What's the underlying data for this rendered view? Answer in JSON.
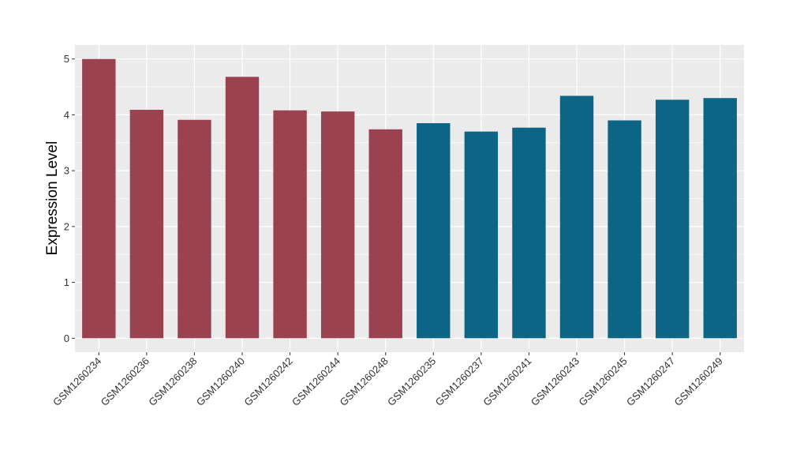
{
  "chart_data": {
    "type": "bar",
    "ylabel": "Expression Level",
    "xlabel": "",
    "title": "",
    "ylim": [
      -0.25,
      5.25
    ],
    "yticks": [
      0,
      1,
      2,
      3,
      4,
      5
    ],
    "grid": true,
    "legend": "none",
    "categories": [
      "GSM1260234",
      "GSM1260236",
      "GSM1260238",
      "GSM1260240",
      "GSM1260242",
      "GSM1260244",
      "GSM1260248",
      "GSM1260235",
      "GSM1260237",
      "GSM1260241",
      "GSM1260243",
      "GSM1260245",
      "GSM1260247",
      "GSM1260249"
    ],
    "values": [
      5.0,
      4.09,
      3.91,
      4.68,
      4.08,
      4.06,
      3.74,
      3.85,
      3.7,
      3.77,
      4.34,
      3.9,
      4.27,
      4.3
    ],
    "groups": [
      "a",
      "a",
      "a",
      "a",
      "a",
      "a",
      "a",
      "b",
      "b",
      "b",
      "b",
      "b",
      "b",
      "b"
    ],
    "colors": {
      "a": "#9a4250",
      "b": "#0c6585"
    },
    "panel_background": "#ebebeb",
    "grid_color": "#ffffff"
  }
}
